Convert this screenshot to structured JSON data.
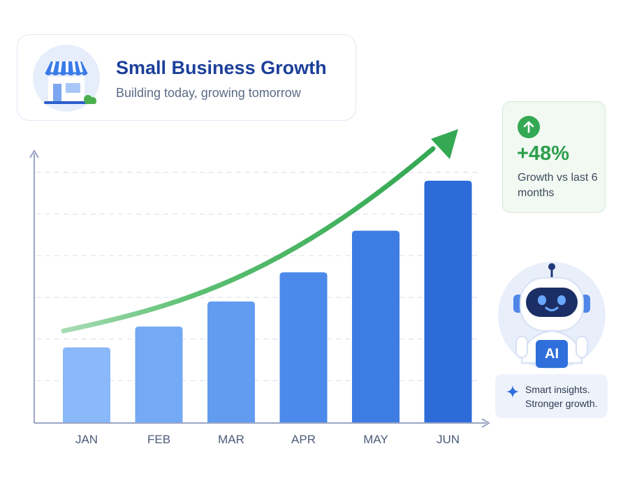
{
  "header": {
    "title": "Small Business Growth",
    "subtitle": "Building today, growing tomorrow",
    "icon": "storefront-icon"
  },
  "growth_card": {
    "icon": "arrow-up-circle-icon",
    "value": "+48%",
    "label": "Growth vs last 6 months"
  },
  "assistant": {
    "badge": "AI",
    "icon": "robot-icon",
    "sparkle_icon": "sparkle-icon",
    "message": "Smart insights. Stronger growth."
  },
  "colors": {
    "title": "#1c3f9a",
    "accent_green": "#34a853",
    "bar_light": "#8ab8f8",
    "bar_dark": "#2d6bd9",
    "axis": "#9aa5c4"
  },
  "chart_data": {
    "type": "bar",
    "categories": [
      "JAN",
      "FEB",
      "MAR",
      "APR",
      "MAY",
      "JUN"
    ],
    "values": [
      18,
      23,
      29,
      36,
      46,
      58
    ],
    "ylim": [
      0,
      62
    ],
    "title": "",
    "xlabel": "",
    "ylabel": "",
    "grid": true,
    "trend_arrow": true
  }
}
